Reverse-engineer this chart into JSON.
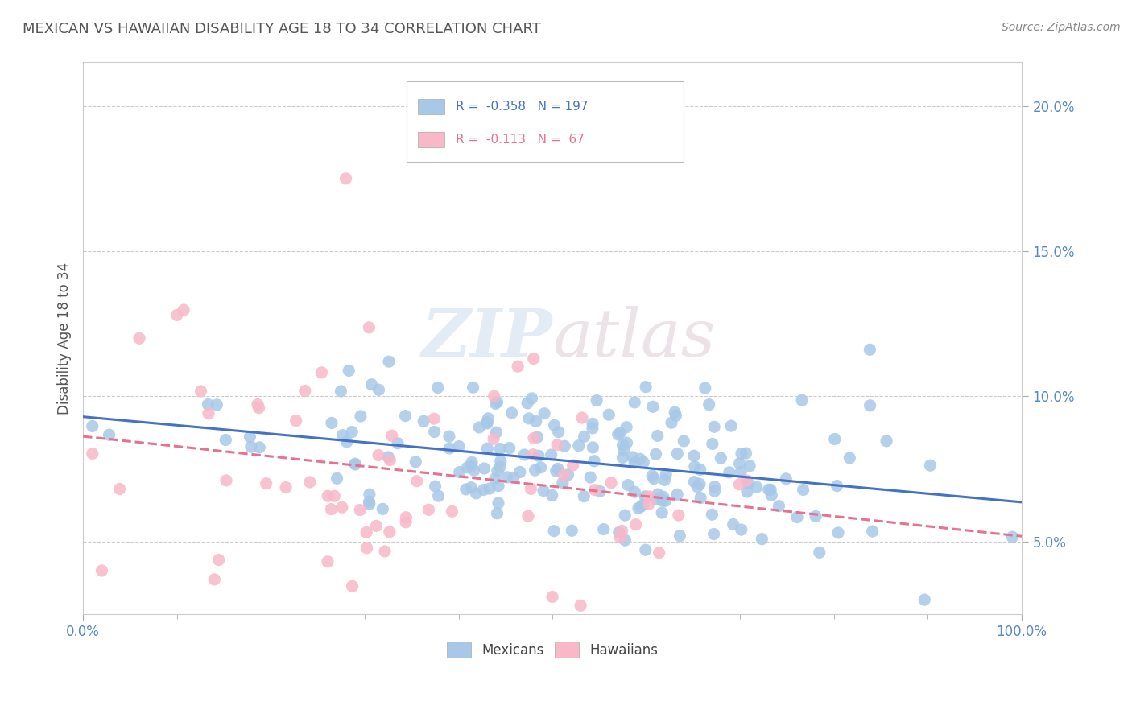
{
  "title": "MEXICAN VS HAWAIIAN DISABILITY AGE 18 TO 34 CORRELATION CHART",
  "source_text": "Source: ZipAtlas.com",
  "ylabel": "Disability Age 18 to 34",
  "xlim": [
    0,
    1
  ],
  "ylim": [
    0.025,
    0.215
  ],
  "xticks": [
    0.0,
    1.0
  ],
  "xtick_labels": [
    "0.0%",
    "100.0%"
  ],
  "yticks": [
    0.05,
    0.1,
    0.15,
    0.2
  ],
  "ytick_labels": [
    "5.0%",
    "10.0%",
    "15.0%",
    "20.0%"
  ],
  "mexican_color": "#a8c8e8",
  "hawaiian_color": "#f8b8c8",
  "mexican_line_color": "#4472c4",
  "hawaiian_line_color": "#e87090",
  "R_mexican": -0.358,
  "N_mexican": 197,
  "R_hawaiian": -0.113,
  "N_hawaiian": 67,
  "watermark_zip": "ZIP",
  "watermark_atlas": "atlas",
  "seed": 42,
  "background_color": "#ffffff",
  "grid_color": "#cccccc",
  "title_color": "#555555",
  "axis_label_color": "#555555",
  "tick_color": "#5588cc",
  "legend_label_mexican": "Mexicans",
  "legend_label_hawaiian": "Hawaiians"
}
